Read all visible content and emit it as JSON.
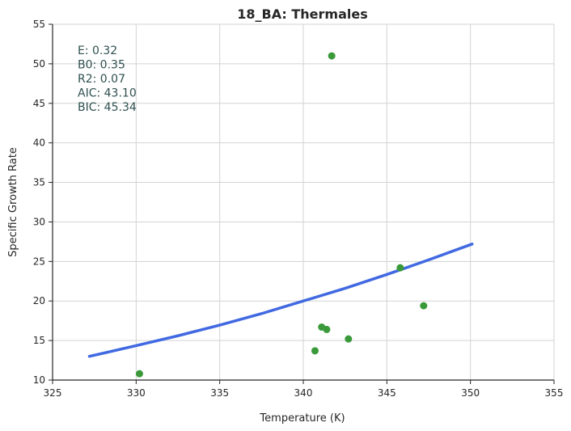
{
  "chart_data": {
    "type": "scatter",
    "title": "18_BA: Thermales",
    "xlabel": "Temperature (K)",
    "ylabel": "Specific Growth Rate",
    "xlim": [
      325,
      355
    ],
    "ylim": [
      10,
      55
    ],
    "x_ticks": [
      "325",
      "330",
      "335",
      "340",
      "345",
      "350",
      "355"
    ],
    "y_ticks": [
      "10",
      "15",
      "20",
      "25",
      "30",
      "35",
      "40",
      "45",
      "50",
      "55"
    ],
    "grid": true,
    "scatter_color": "#3a9a3a",
    "line_color": "#4169e1",
    "points": [
      {
        "x": 330.2,
        "y": 10.8
      },
      {
        "x": 340.7,
        "y": 13.7
      },
      {
        "x": 341.1,
        "y": 16.7
      },
      {
        "x": 341.4,
        "y": 16.4
      },
      {
        "x": 341.7,
        "y": 51.0
      },
      {
        "x": 342.7,
        "y": 15.2
      },
      {
        "x": 345.8,
        "y": 24.2
      },
      {
        "x": 347.2,
        "y": 19.4
      }
    ],
    "fit_line": [
      {
        "x": 327.2,
        "y": 13.0
      },
      {
        "x": 330.0,
        "y": 14.35
      },
      {
        "x": 332.5,
        "y": 15.6
      },
      {
        "x": 335.0,
        "y": 16.95
      },
      {
        "x": 337.5,
        "y": 18.4
      },
      {
        "x": 340.0,
        "y": 20.0
      },
      {
        "x": 342.5,
        "y": 21.6
      },
      {
        "x": 345.0,
        "y": 23.35
      },
      {
        "x": 347.5,
        "y": 25.2
      },
      {
        "x": 350.1,
        "y": 27.2
      }
    ],
    "annotations": [
      "E:  0.32",
      "B0:  0.35",
      "R2:  0.07",
      "AIC: 43.10",
      "BIC: 45.34"
    ]
  }
}
